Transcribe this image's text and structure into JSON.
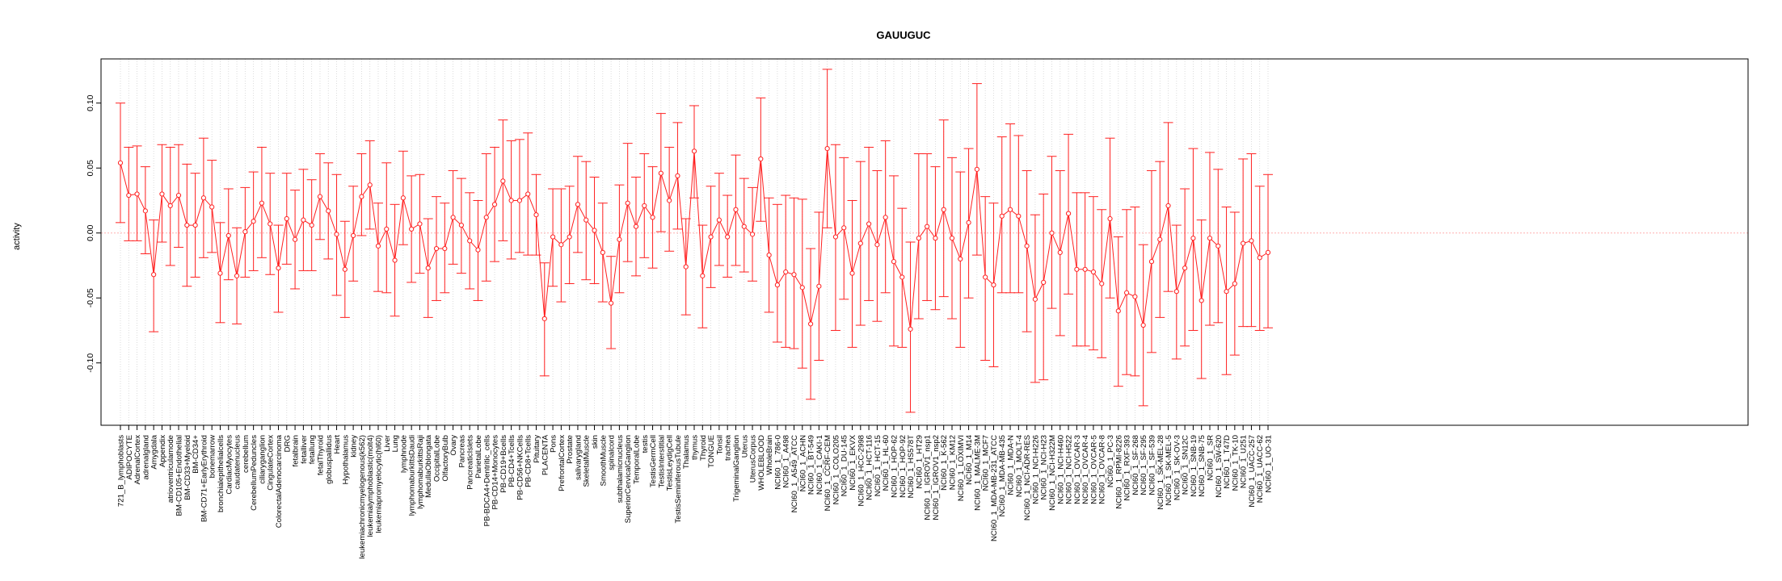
{
  "chart_data": {
    "type": "line",
    "title": "GAUUGUC",
    "xlabel": "",
    "ylabel": "activity",
    "ylim": [
      -0.148,
      0.134
    ],
    "y_ticks": [
      -0.1,
      -0.05,
      0.0,
      0.05,
      0.1
    ],
    "y_tick_labels": [
      "-0.10",
      "-0.05",
      "0.00",
      "0.05",
      "0.10"
    ],
    "reference_line": 0,
    "grid": "vertical dotted lines at each category",
    "colors": {
      "series": "#ff2020",
      "grid": "#d3d3d3",
      "reference": "#ffb0b0",
      "frame": "#000000"
    },
    "categories": [
      "721_B_lymphoblasts",
      "ADIPOCYTE",
      "AdrenalCortex",
      "adrenalgland",
      "Amygdala",
      "Appendix",
      "atrioventricularnode",
      "BM-CD105+Endothelial",
      "BM-CD33+Myeloid",
      "BM-CD34+",
      "BM-CD71+EarlyErythroid",
      "bonemarrow",
      "bronchialepithelialcells",
      "CardiacMyocytes",
      "caudatenucleus",
      "cerebellum",
      "CerebellumPeduncles",
      "ciliaryganglion",
      "CingulateCortex",
      "ColorectalAdenocarcinoma",
      "DRG",
      "fetalbrain",
      "fetalliver",
      "fetallung",
      "fetalThyroid",
      "globuspallidus",
      "Heart",
      "Hypothalamus",
      "kidney",
      "leukemiachronicmyelogenous(k562)",
      "leukemialymphoblastic(molt4)",
      "leukemiapromyelocytic(hl60)",
      "Liver",
      "Lung",
      "lymphnode",
      "lymphomaburkittsDaudi",
      "lymphomaburkittsRaji",
      "MedullaOblongata",
      "OccipitalLobe",
      "OlfactoryBulb",
      "Ovary",
      "Pancreas",
      "PancreaticIslets",
      "ParietalLobe",
      "PB-BDCA4+Dentritic_cells",
      "PB-CD14+Monocytes",
      "PB-CD19+Bcells",
      "PB-CD4+Tcells",
      "PB-CD56+NKCells",
      "PB-CD8+Tcells",
      "Pituitary",
      "PLACENTA",
      "Pons",
      "PrefrontalCortex",
      "Prostate",
      "salivarygland",
      "SkeletalMuscle",
      "skin",
      "SmoothMuscle",
      "spinalcord",
      "subthalamicnucleus",
      "SuperiorCervicalGanglion",
      "TemporalLobe",
      "testis",
      "TestisGermCell",
      "TestisInterstitial",
      "TestisLeydigCell",
      "TestisSeminiferousTubule",
      "Thalamus",
      "thymus",
      "Thyroid",
      "TONGUE",
      "Tonsil",
      "trachea",
      "TrigeminalGanglion",
      "Uterus",
      "UterusCorpus",
      "WHOLEBLOOD",
      "WholeBrain",
      "NCI60_1_786-0",
      "NCI60_1_A498",
      "NCI60_1_A549_ATCC",
      "NCI60_1_ACHN",
      "NCI60_1_BT-549",
      "NCI60_1_CAKI-1",
      "NCI60_1_CCRF-CEM",
      "NCI60_1_COLO205",
      "NCI60_1_DU-145",
      "NCI60_1_EKVX",
      "NCI60_1_HCC-2998",
      "NCI60_1_HCT-116",
      "NCI60_1_HCT-15",
      "NCI60_1_HL-60",
      "NCI60_1_HOP-62",
      "NCI60_1_HOP-92",
      "NCI60_1_HS578T",
      "NCI60_1_HT29",
      "NCI60_1_IGROV1_nsp1",
      "NCI60_1_IGROV1_nsp2",
      "NCI60_1_K-562",
      "NCI60_1_KM12",
      "NCI60_1_LOXIMVI",
      "NCI60_1_M14",
      "NCI60_1_MALME-3M",
      "NCI60_1_MCF7",
      "NCI60_1_MDA-MB-231_ATCC",
      "NCI60_1_MDA-MB-435",
      "NCI60_1_MDA-N",
      "NCI60_1_MOLT-4",
      "NCI60_1_NCI-ADR-RES",
      "NCI60_1_NCI-H226",
      "NCI60_1_NCI-H23",
      "NCI60_1_NCI-H322M",
      "NCI60_1_NCI-H460",
      "NCI60_1_NCI-H522",
      "NCI60_1_OVCAR-3",
      "NCI60_1_OVCAR-4",
      "NCI60_1_OVCAR-5",
      "NCI60_1_OVCAR-8",
      "NCI60_1_PC-3",
      "NCI60_1_RPMI-8226",
      "NCI60_1_RXF-393",
      "NCI60_1_SF-268",
      "NCI60_1_SF-295",
      "NCI60_1_SF-539",
      "NCI60_1_SK-MEL-28",
      "NCI60_1_SK-MEL-5",
      "NCI60_1_SK-OV-3",
      "NCI60_1_SN12C",
      "NCI60_1_SNB-19",
      "NCI60_1_SNB-75",
      "NCI60_1_SR",
      "NCI60_1_SW-620",
      "NCI60_1_T47D",
      "NCI60_1_TK-10",
      "NCI60_1_U251",
      "NCI60_1_UACC-257",
      "NCI60_1_UACC-62",
      "NCI60_1_UO-31"
    ],
    "series": [
      {
        "name": "activity",
        "values": [
          0.054,
          0.029,
          0.03,
          0.017,
          -0.032,
          0.03,
          0.021,
          0.029,
          0.006,
          0.006,
          0.027,
          0.02,
          -0.031,
          -0.002,
          -0.033,
          0.001,
          0.009,
          0.023,
          0.007,
          -0.027,
          0.011,
          -0.005,
          0.01,
          0.006,
          0.028,
          0.017,
          -0.001,
          -0.028,
          -0.002,
          0.028,
          0.037,
          -0.01,
          0.003,
          -0.021,
          0.027,
          0.003,
          0.007,
          -0.027,
          -0.012,
          -0.012,
          0.012,
          0.006,
          -0.006,
          -0.013,
          0.012,
          0.022,
          0.04,
          0.025,
          0.025,
          0.03,
          0.014,
          -0.066,
          -0.003,
          -0.009,
          -0.003,
          0.022,
          0.01,
          0.002,
          -0.015,
          -0.054,
          -0.005,
          0.023,
          0.005,
          0.021,
          0.012,
          0.046,
          0.025,
          0.044,
          -0.026,
          0.063,
          -0.033,
          -0.003,
          0.01,
          -0.003,
          0.018,
          0.005,
          -0.001,
          0.057,
          -0.017,
          -0.04,
          -0.03,
          -0.032,
          -0.042,
          -0.07,
          -0.041,
          0.065,
          -0.003,
          0.004,
          -0.031,
          -0.008,
          0.007,
          -0.009,
          0.012,
          -0.022,
          -0.034,
          -0.074,
          -0.004,
          0.005,
          -0.004,
          0.018,
          -0.004,
          -0.02,
          0.008,
          0.049,
          -0.034,
          -0.04,
          0.013,
          0.018,
          0.013,
          -0.01,
          -0.051,
          -0.038,
          0.0,
          -0.015,
          0.015,
          -0.028,
          -0.028,
          -0.03,
          -0.039,
          0.011,
          -0.06,
          -0.046,
          -0.049,
          -0.071,
          -0.022,
          -0.005,
          0.021,
          -0.045,
          -0.027,
          -0.004,
          -0.052,
          -0.004,
          -0.01,
          -0.045,
          -0.039,
          -0.008,
          -0.006,
          -0.019,
          -0.015
        ]
      }
    ],
    "error_lower": [
      0.008,
      -0.006,
      -0.006,
      -0.016,
      -0.076,
      -0.007,
      -0.025,
      -0.011,
      -0.041,
      -0.034,
      -0.019,
      -0.015,
      -0.069,
      -0.036,
      -0.07,
      -0.034,
      -0.029,
      -0.019,
      -0.032,
      -0.061,
      -0.024,
      -0.043,
      -0.029,
      -0.029,
      -0.005,
      -0.02,
      -0.048,
      -0.065,
      -0.037,
      -0.002,
      0.003,
      -0.045,
      -0.046,
      -0.064,
      -0.009,
      -0.038,
      -0.031,
      -0.065,
      -0.052,
      -0.046,
      -0.024,
      -0.031,
      -0.043,
      -0.052,
      -0.037,
      -0.022,
      -0.006,
      -0.02,
      -0.015,
      -0.017,
      -0.017,
      -0.11,
      -0.041,
      -0.053,
      -0.039,
      -0.015,
      -0.036,
      -0.039,
      -0.053,
      -0.089,
      -0.046,
      -0.022,
      -0.033,
      -0.019,
      -0.027,
      0.001,
      -0.014,
      0.003,
      -0.063,
      0.027,
      -0.073,
      -0.042,
      -0.025,
      -0.034,
      -0.025,
      -0.03,
      -0.037,
      0.009,
      -0.061,
      -0.084,
      -0.088,
      -0.089,
      -0.104,
      -0.128,
      -0.098,
      0.004,
      -0.075,
      -0.051,
      -0.088,
      -0.071,
      -0.052,
      -0.068,
      -0.046,
      -0.087,
      -0.088,
      -0.138,
      -0.066,
      -0.052,
      -0.059,
      -0.049,
      -0.066,
      -0.088,
      -0.05,
      -0.017,
      -0.098,
      -0.103,
      -0.046,
      -0.046,
      -0.046,
      -0.076,
      -0.115,
      -0.113,
      -0.058,
      -0.079,
      -0.047,
      -0.087,
      -0.087,
      -0.09,
      -0.096,
      -0.05,
      -0.118,
      -0.109,
      -0.11,
      -0.133,
      -0.092,
      -0.065,
      -0.045,
      -0.097,
      -0.087,
      -0.075,
      -0.112,
      -0.071,
      -0.069,
      -0.109,
      -0.094,
      -0.072,
      -0.072,
      -0.075,
      -0.073
    ],
    "error_upper": [
      0.1,
      0.066,
      0.067,
      0.051,
      0.01,
      0.068,
      0.066,
      0.068,
      0.053,
      0.046,
      0.073,
      0.056,
      0.008,
      0.034,
      0.004,
      0.035,
      0.047,
      0.066,
      0.046,
      0.006,
      0.046,
      0.033,
      0.049,
      0.041,
      0.061,
      0.054,
      0.045,
      0.009,
      0.036,
      0.061,
      0.071,
      0.023,
      0.054,
      0.022,
      0.063,
      0.044,
      0.045,
      0.011,
      0.028,
      0.023,
      0.048,
      0.042,
      0.031,
      0.025,
      0.061,
      0.066,
      0.087,
      0.071,
      0.072,
      0.077,
      0.045,
      -0.023,
      0.034,
      0.034,
      0.036,
      0.059,
      0.055,
      0.043,
      0.023,
      -0.018,
      0.037,
      0.069,
      0.043,
      0.061,
      0.051,
      0.092,
      0.066,
      0.085,
      0.011,
      0.098,
      0.006,
      0.036,
      0.046,
      0.029,
      0.06,
      0.042,
      0.035,
      0.104,
      0.027,
      0.022,
      0.029,
      0.027,
      0.026,
      -0.012,
      0.016,
      0.126,
      0.068,
      0.058,
      0.025,
      0.055,
      0.066,
      0.048,
      0.071,
      0.044,
      0.019,
      -0.007,
      0.061,
      0.061,
      0.051,
      0.087,
      0.058,
      0.047,
      0.065,
      0.115,
      0.028,
      0.023,
      0.074,
      0.084,
      0.075,
      0.048,
      0.014,
      0.03,
      0.059,
      0.048,
      0.076,
      0.031,
      0.031,
      0.028,
      0.018,
      0.073,
      -0.003,
      0.018,
      0.02,
      -0.009,
      0.048,
      0.055,
      0.085,
      0.006,
      0.034,
      0.065,
      0.01,
      0.062,
      0.049,
      0.02,
      0.016,
      0.057,
      0.061,
      0.036,
      0.045
    ]
  }
}
